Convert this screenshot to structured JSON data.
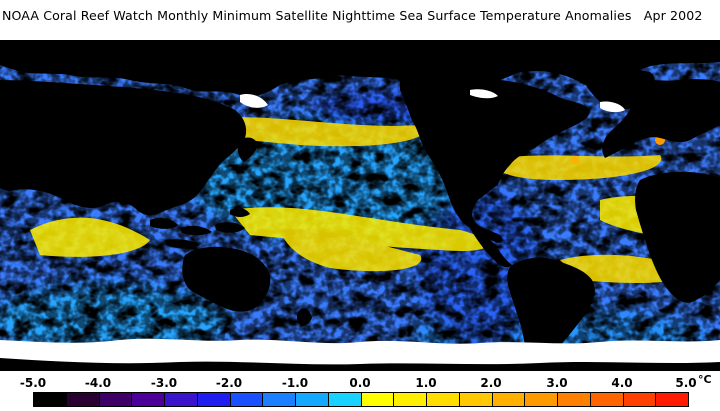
{
  "title": "NOAA Coral Reef Watch Monthly Minimum Satellite Nighttime Sea Surface Temperature Anomalies   Apr 2002",
  "legend": {
    "ticks": [
      "-5.0",
      "-4.0",
      "-3.0",
      "-2.0",
      "-1.0",
      "0.0",
      "1.0",
      "2.0",
      "3.0",
      "4.0",
      "5.0"
    ],
    "unit": "°C",
    "colors": [
      "#000000",
      "#2a0033",
      "#3c0066",
      "#4a0099",
      "#3a14cc",
      "#1e1ef0",
      "#1a50ff",
      "#1a80ff",
      "#15a8ff",
      "#19d2ff",
      "#ffff00",
      "#ffee00",
      "#ffdd00",
      "#ffc800",
      "#ffb000",
      "#ff9a00",
      "#ff8000",
      "#ff6400",
      "#ff4000",
      "#ff1a00"
    ]
  },
  "colors": {
    "land": "#000000",
    "ice": "#ffffff",
    "ocean_base": "#3a7cff",
    "warm_anomaly": "#ffee00",
    "cold_anomaly": "#3a14cc"
  }
}
